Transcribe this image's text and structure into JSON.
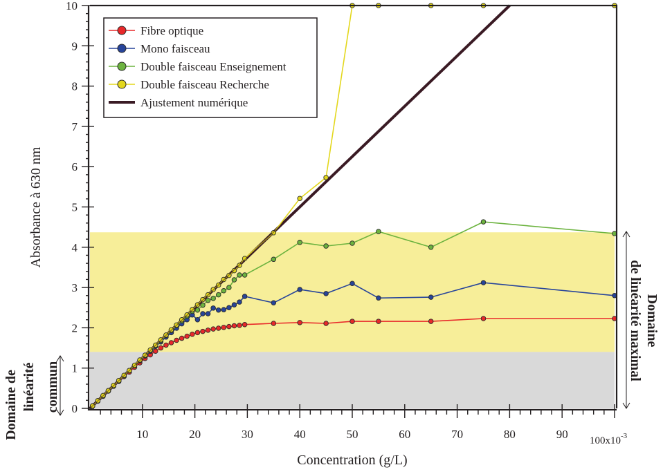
{
  "chart_data": {
    "type": "line",
    "title": "",
    "xlabel": "Concentration (g/L)",
    "ylabel": "Absorbance à 630 nm",
    "x_multiplier_label": "100x10",
    "x_multiplier_exponent": "-3",
    "xlim": [
      0,
      100
    ],
    "ylim": [
      0,
      10
    ],
    "x_ticks": [
      10,
      20,
      30,
      40,
      50,
      60,
      70,
      80,
      90
    ],
    "x_tick_labels": [
      "10",
      "20",
      "30",
      "40",
      "50",
      "60",
      "70",
      "80",
      "90"
    ],
    "y_ticks": [
      0,
      1,
      2,
      3,
      4,
      5,
      6,
      7,
      8,
      9,
      10
    ],
    "y_tick_labels": [
      "0",
      "1",
      "2",
      "3",
      "4",
      "5",
      "6",
      "7",
      "8",
      "9",
      "10"
    ],
    "grid": false,
    "legend_position": "top-left",
    "bands": [
      {
        "name": "linearite-maximal",
        "y_from": 1.4,
        "y_to": 4.37,
        "color": "#f7ee99"
      },
      {
        "name": "linearite-commun",
        "y_from": 0,
        "y_to": 1.4,
        "color": "#d9d9d9"
      }
    ],
    "annotations": {
      "left_line1": "Domaine de",
      "left_line2": "linéarité",
      "left_line3": "commun",
      "right_line1": "Domaine",
      "right_line2": "de linéarité maximal"
    },
    "series": [
      {
        "name": "Fibre optique",
        "color": "#e8282a",
        "x": [
          0.5,
          1.5,
          2.5,
          3.5,
          4.5,
          5.5,
          6.5,
          7.5,
          8.5,
          9.5,
          10.5,
          11.5,
          12.5,
          13.5,
          14.5,
          15.5,
          16.5,
          17.5,
          18.5,
          19.5,
          20.5,
          21.5,
          22.5,
          23.5,
          24.5,
          25.5,
          26.5,
          27.5,
          28.5,
          29.5,
          35,
          40,
          45,
          50,
          55,
          65,
          75,
          100
        ],
        "y": [
          0.06,
          0.18,
          0.3,
          0.43,
          0.55,
          0.67,
          0.79,
          0.9,
          1.02,
          1.13,
          1.24,
          1.33,
          1.42,
          1.5,
          1.57,
          1.63,
          1.69,
          1.74,
          1.79,
          1.84,
          1.88,
          1.91,
          1.94,
          1.97,
          1.99,
          2.01,
          2.03,
          2.05,
          2.06,
          2.08,
          2.11,
          2.13,
          2.11,
          2.16,
          2.16,
          2.16,
          2.23,
          2.23
        ]
      },
      {
        "name": "Mono faisceau",
        "color": "#27449a",
        "x": [
          0.5,
          1.5,
          2.5,
          3.5,
          4.5,
          5.5,
          6.5,
          7.5,
          8.5,
          9.5,
          10.5,
          11.5,
          12.5,
          13.5,
          14.5,
          15.5,
          16.5,
          17.5,
          18.5,
          19.5,
          20.5,
          21.5,
          22.5,
          23.5,
          24.5,
          25.5,
          26.5,
          27.5,
          28.5,
          29.5,
          35,
          40,
          45,
          50,
          55,
          65,
          75,
          100
        ],
        "y": [
          0.06,
          0.18,
          0.31,
          0.43,
          0.56,
          0.68,
          0.81,
          0.93,
          1.06,
          1.18,
          1.3,
          1.42,
          1.54,
          1.65,
          1.77,
          1.88,
          1.99,
          2.1,
          2.2,
          2.32,
          2.2,
          2.35,
          2.35,
          2.49,
          2.44,
          2.45,
          2.5,
          2.57,
          2.64,
          2.78,
          2.62,
          2.95,
          2.85,
          3.1,
          2.74,
          2.76,
          3.12,
          2.8
        ]
      },
      {
        "name": "Double faisceau Enseignement",
        "color": "#6cb33f",
        "x": [
          0.5,
          1.5,
          2.5,
          3.5,
          4.5,
          5.5,
          6.5,
          7.5,
          8.5,
          9.5,
          10.5,
          11.5,
          12.5,
          13.5,
          14.5,
          15.5,
          16.5,
          17.5,
          18.5,
          19.5,
          20.5,
          21.5,
          22.5,
          23.5,
          24.5,
          25.5,
          26.5,
          27.5,
          28.5,
          29.5,
          35,
          40,
          45,
          50,
          55,
          65,
          75,
          100
        ],
        "y": [
          0.06,
          0.19,
          0.31,
          0.44,
          0.56,
          0.69,
          0.81,
          0.94,
          1.06,
          1.19,
          1.31,
          1.44,
          1.56,
          1.68,
          1.81,
          1.93,
          2.05,
          2.17,
          2.29,
          2.41,
          2.44,
          2.56,
          2.68,
          2.73,
          2.82,
          2.92,
          3.0,
          3.19,
          3.31,
          3.31,
          3.7,
          4.12,
          4.03,
          4.1,
          4.39,
          4.0,
          4.63,
          4.34
        ]
      },
      {
        "name": "Double faisceau Recherche",
        "color": "#e3d71c",
        "x": [
          0.5,
          1.5,
          2.5,
          3.5,
          4.5,
          5.5,
          6.5,
          7.5,
          8.5,
          9.5,
          10.5,
          11.5,
          12.5,
          13.5,
          14.5,
          15.5,
          16.5,
          17.5,
          18.5,
          19.5,
          20.5,
          21.5,
          22.5,
          23.5,
          24.5,
          25.5,
          26.5,
          27.5,
          28.5,
          29.5,
          35,
          40,
          45,
          50,
          55,
          65,
          75,
          100
        ],
        "y": [
          0.06,
          0.19,
          0.32,
          0.44,
          0.57,
          0.69,
          0.82,
          0.94,
          1.07,
          1.2,
          1.32,
          1.45,
          1.57,
          1.7,
          1.82,
          1.95,
          2.07,
          2.2,
          2.32,
          2.45,
          2.57,
          2.7,
          2.82,
          2.95,
          3.06,
          3.2,
          3.3,
          3.42,
          3.55,
          3.72,
          4.36,
          5.21,
          5.73,
          10,
          10,
          10,
          10,
          10
        ]
      },
      {
        "name": "Ajustement numérique",
        "color": "#3a1b24",
        "type": "fit",
        "x": [
          0,
          80
        ],
        "y": [
          0,
          10
        ]
      }
    ]
  }
}
